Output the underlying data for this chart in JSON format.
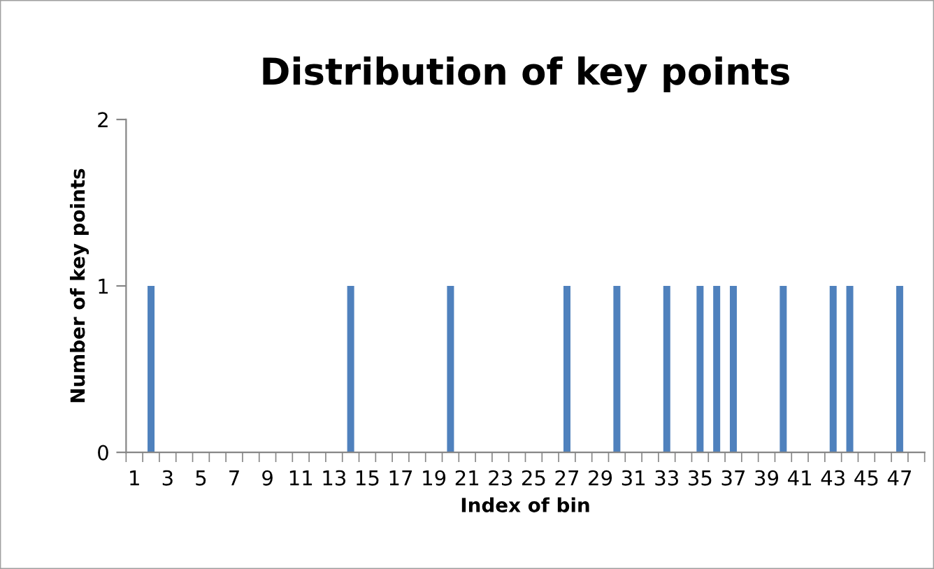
{
  "chart_data": {
    "type": "bar",
    "title": "Distribution of key points",
    "xlabel": "Index of bin",
    "ylabel": "Number of key points",
    "categories": [
      "1",
      null,
      "3",
      null,
      "5",
      null,
      "7",
      null,
      "9",
      null,
      "11",
      null,
      "13",
      null,
      "15",
      null,
      "17",
      null,
      "19",
      null,
      "21",
      null,
      "23",
      null,
      "25",
      null,
      "27",
      null,
      "29",
      null,
      "31",
      null,
      "33",
      null,
      "35",
      null,
      "37",
      null,
      "39",
      null,
      "41",
      null,
      "43",
      null,
      "45",
      null,
      "47",
      null
    ],
    "values": [
      0,
      1,
      0,
      0,
      0,
      0,
      0,
      0,
      0,
      0,
      0,
      0,
      0,
      1,
      0,
      0,
      0,
      0,
      0,
      1,
      0,
      0,
      0,
      0,
      0,
      0,
      1,
      0,
      0,
      1,
      0,
      0,
      1,
      0,
      1,
      1,
      1,
      0,
      0,
      1,
      0,
      0,
      1,
      1,
      0,
      0,
      1,
      0
    ],
    "color": "#4f81bd",
    "ylim": [
      0,
      2
    ],
    "yticks": [
      0,
      1,
      2
    ],
    "grid": false,
    "legend": false
  }
}
